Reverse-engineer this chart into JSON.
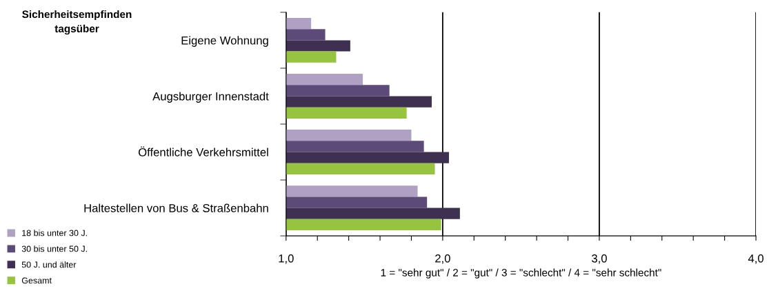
{
  "chart_data": {
    "type": "bar",
    "orientation": "horizontal",
    "title": "Sicherheitsempfinden\ntagsüber",
    "xlabel": "1 = \"sehr gut\" / 2 = \"gut\" / 3 = \"schlecht\" / 4 = \"sehr schlecht\"",
    "categories": [
      "Eigene Wohnung",
      "Augsburger Innenstadt",
      "Öffentliche Verkehrsmittel",
      "Haltestellen von Bus & Straßenbahn"
    ],
    "series": [
      {
        "name": "18 bis unter 30 J.",
        "color": "#b0a0c4",
        "values": [
          1.16,
          1.49,
          1.8,
          1.84
        ]
      },
      {
        "name": "30 bis unter 50 J.",
        "color": "#5c4a78",
        "values": [
          1.25,
          1.66,
          1.88,
          1.9
        ]
      },
      {
        "name": "50 J. und älter",
        "color": "#3e3050",
        "values": [
          1.41,
          1.93,
          2.04,
          2.11
        ]
      },
      {
        "name": "Gesamt",
        "color": "#96c43e",
        "values": [
          1.32,
          1.77,
          1.95,
          1.99
        ]
      }
    ],
    "xlim": [
      1,
      4
    ],
    "xticks": [
      {
        "value": 1,
        "label": "1,0"
      },
      {
        "value": 1.2,
        "label": null
      },
      {
        "value": 1.4,
        "label": null
      },
      {
        "value": 1.6,
        "label": null
      },
      {
        "value": 1.8,
        "label": null
      },
      {
        "value": 2,
        "label": "2,0"
      },
      {
        "value": 2.2,
        "label": null
      },
      {
        "value": 2.4,
        "label": null
      },
      {
        "value": 2.6,
        "label": null
      },
      {
        "value": 2.8,
        "label": null
      },
      {
        "value": 3,
        "label": "3,0"
      },
      {
        "value": 3.2,
        "label": null
      },
      {
        "value": 3.4,
        "label": null
      },
      {
        "value": 3.6,
        "label": null
      },
      {
        "value": 3.8,
        "label": null
      },
      {
        "value": 4,
        "label": "4,0"
      }
    ],
    "grid": "x",
    "legend": "bottom left"
  }
}
